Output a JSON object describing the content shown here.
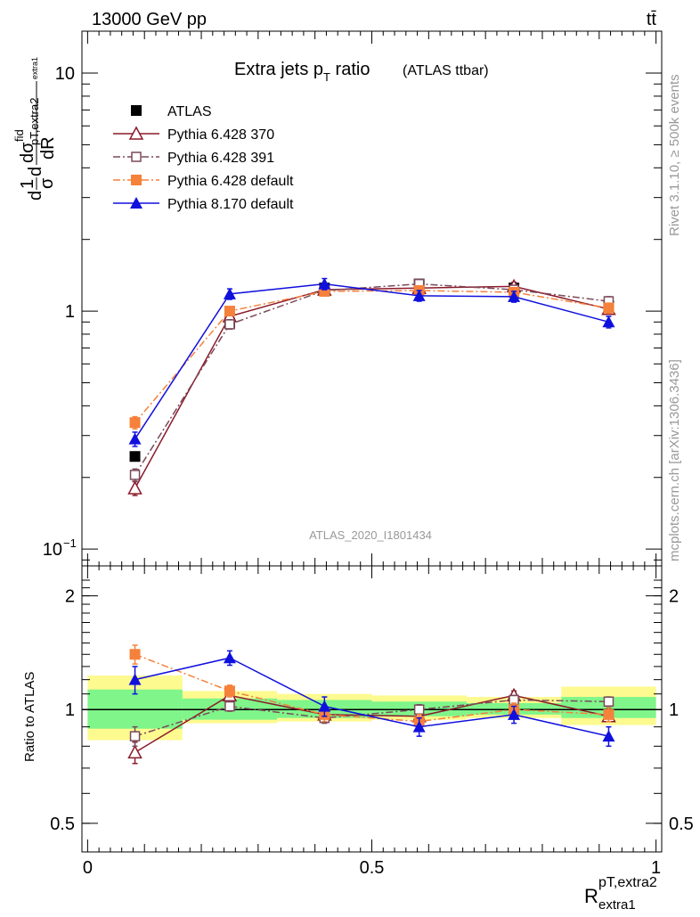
{
  "header": {
    "energy_label": "13000 GeV pp",
    "process_label": "tt̄"
  },
  "side": {
    "rivet_label": "Rivet 3.1.10, ≥ 500k events",
    "site_label": "mcplots.cern.ch [arXiv:1306.3436]"
  },
  "chart_data": [
    {
      "type": "line",
      "title": "Extra jets p",
      "title_sub": "T",
      "title_tail": " ratio",
      "title_note": "(ATLAS ttbar)",
      "ylabel_lines": [
        "d",
        "1",
        "σ",
        "d",
        "dσ",
        "fid",
        "dR",
        "pT,extra2",
        "extra1"
      ],
      "yscale": "log",
      "ylim": [
        0.085,
        15
      ],
      "xlim": [
        -0.01,
        1.01
      ],
      "yticks": [
        {
          "v": 10,
          "label": "10",
          "sup": ""
        },
        {
          "v": 1,
          "label": "1",
          "sup": ""
        },
        {
          "v": 0.1,
          "label": "10",
          "sup": "−1"
        }
      ],
      "watermark": "ATLAS_2020_I1801434",
      "x": [
        0.0833,
        0.25,
        0.4167,
        0.5833,
        0.75,
        0.9167
      ],
      "atlas_bins": [
        [
          0.0,
          0.1667
        ],
        [
          0.1667,
          0.3333
        ],
        [
          0.3333,
          0.5
        ],
        [
          0.5,
          0.6667
        ],
        [
          0.6667,
          0.8333
        ],
        [
          0.8333,
          1.0
        ]
      ],
      "series": [
        {
          "name": "ATLAS",
          "color": "#000000",
          "marker": "square-filled",
          "dash": "none",
          "values": [
            0.245,
            0.89,
            1.25,
            1.3,
            1.25,
            1.05
          ],
          "errors": [
            0.01,
            0.03,
            0.04,
            0.04,
            0.04,
            0.04
          ]
        },
        {
          "name": "Pythia 6.428 370",
          "color": "#8b1a2a",
          "marker": "triangle-open",
          "dash": "solid",
          "values": [
            0.18,
            0.95,
            1.23,
            1.25,
            1.27,
            1.02
          ],
          "errors": [
            0.012,
            0.04,
            0.05,
            0.05,
            0.05,
            0.05
          ]
        },
        {
          "name": "Pythia 6.428 391",
          "color": "#7a4a5a",
          "marker": "square-open",
          "dash": "dashdot",
          "values": [
            0.205,
            0.88,
            1.22,
            1.3,
            1.23,
            1.1
          ],
          "errors": [
            0.012,
            0.04,
            0.05,
            0.05,
            0.05,
            0.05
          ]
        },
        {
          "name": "Pythia 6.428 default",
          "color": "#f5813a",
          "marker": "square-filled",
          "dash": "dashdot",
          "values": [
            0.34,
            1.0,
            1.21,
            1.22,
            1.2,
            1.03
          ],
          "errors": [
            0.02,
            0.04,
            0.05,
            0.05,
            0.05,
            0.05
          ]
        },
        {
          "name": "Pythia 8.170 default",
          "color": "#1010dd",
          "marker": "triangle-filled",
          "dash": "solid",
          "values": [
            0.29,
            1.18,
            1.3,
            1.16,
            1.15,
            0.9
          ],
          "errors": [
            0.02,
            0.06,
            0.07,
            0.06,
            0.06,
            0.05
          ]
        }
      ]
    },
    {
      "type": "line",
      "ylabel": "Ratio to ATLAS",
      "xlabel": "R",
      "xlabel_sup": "pT,extra2",
      "xlabel_sub": "extra1",
      "yscale": "log",
      "ylim": [
        0.42,
        2.4
      ],
      "xlim": [
        -0.01,
        1.01
      ],
      "xticks": [
        {
          "v": 0,
          "label": "0"
        },
        {
          "v": 0.5,
          "label": "0.5"
        },
        {
          "v": 1,
          "label": "1"
        }
      ],
      "yticks": [
        {
          "v": 2,
          "label": "2"
        },
        {
          "v": 1,
          "label": "1"
        },
        {
          "v": 0.5,
          "label": "0.5"
        }
      ],
      "band_inner": [
        [
          0.89,
          1.13
        ],
        [
          0.94,
          1.07
        ],
        [
          0.95,
          1.06
        ],
        [
          0.96,
          1.05
        ],
        [
          0.97,
          1.04
        ],
        [
          0.95,
          1.08
        ]
      ],
      "band_outer": [
        [
          0.83,
          1.23
        ],
        [
          0.92,
          1.12
        ],
        [
          0.93,
          1.1
        ],
        [
          0.94,
          1.09
        ],
        [
          0.95,
          1.08
        ],
        [
          0.91,
          1.15
        ]
      ],
      "series": [
        {
          "name": "Pythia 6.428 370",
          "color": "#8b1a2a",
          "marker": "triangle-open",
          "dash": "solid",
          "values": [
            0.77,
            1.09,
            0.97,
            0.96,
            1.09,
            0.96
          ],
          "errors": [
            0.05,
            0.03,
            0.03,
            0.03,
            0.03,
            0.03
          ]
        },
        {
          "name": "Pythia 6.428 391",
          "color": "#7a4a5a",
          "marker": "square-open",
          "dash": "dashdot",
          "values": [
            0.85,
            1.02,
            0.95,
            1.0,
            1.06,
            1.05
          ],
          "errors": [
            0.05,
            0.03,
            0.03,
            0.03,
            0.03,
            0.03
          ]
        },
        {
          "name": "Pythia 6.428 default",
          "color": "#f5813a",
          "marker": "square-filled",
          "dash": "dashdot",
          "values": [
            1.4,
            1.12,
            0.97,
            0.93,
            1.0,
            0.97
          ],
          "errors": [
            0.08,
            0.04,
            0.04,
            0.04,
            0.04,
            0.04
          ]
        },
        {
          "name": "Pythia 8.170 default",
          "color": "#1010dd",
          "marker": "triangle-filled",
          "dash": "solid",
          "values": [
            1.2,
            1.37,
            1.02,
            0.9,
            0.97,
            0.85
          ],
          "errors": [
            0.1,
            0.06,
            0.06,
            0.05,
            0.05,
            0.05
          ]
        }
      ]
    }
  ]
}
